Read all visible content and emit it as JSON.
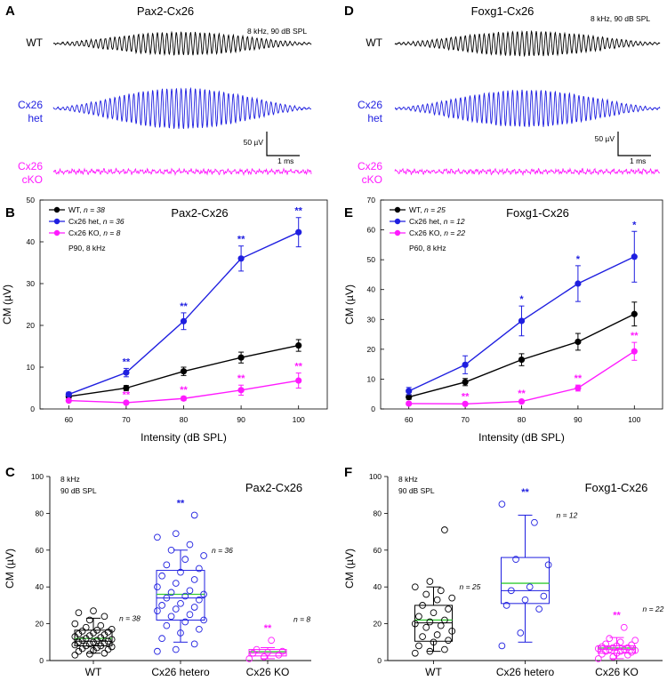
{
  "colors": {
    "wt": "#000000",
    "het": "#1f1fe0",
    "ko": "#ff1aff",
    "green": "#33cc33"
  },
  "panels": {
    "A": {
      "letter": "A",
      "title": "Pax2-Cx26",
      "stim": "8 kHz, 90 dB SPL",
      "labels": {
        "wt": "WT",
        "het1": "Cx26",
        "het2": "het",
        "ko1": "Cx26",
        "ko2": "cKO"
      },
      "scale_amp": "50 µV",
      "scale_time": "1 ms"
    },
    "D": {
      "letter": "D",
      "title": "Foxg1-Cx26",
      "stim": "8 kHz, 90 dB SPL",
      "labels": {
        "wt": "WT",
        "het1": "Cx26",
        "het2": "het",
        "ko1": "Cx26",
        "ko2": "cKO"
      },
      "scale_amp": "50 µV",
      "scale_time": "1 ms"
    }
  },
  "chart_data": [
    {
      "id": "B",
      "letter": "B",
      "type": "line",
      "title": "Pax2-Cx26",
      "xlabel": "Intensity (dB SPL)",
      "ylabel": "CM (µV)",
      "x": [
        60,
        70,
        80,
        90,
        100
      ],
      "xlim": [
        55,
        105
      ],
      "ylim": [
        0,
        50
      ],
      "xticks": [
        60,
        70,
        80,
        90,
        100
      ],
      "yticks": [
        0,
        10,
        20,
        30,
        40,
        50
      ],
      "condition": "P90, 8 kHz",
      "legend_position": "top-left",
      "series": [
        {
          "key": "wt",
          "label": "WT, ",
          "n": "n = 38",
          "values": [
            3.0,
            5.0,
            9.0,
            12.3,
            15.2
          ],
          "err": [
            0.4,
            0.6,
            1.0,
            1.3,
            1.4
          ]
        },
        {
          "key": "het",
          "label": "Cx26 het, ",
          "n": "n = 36",
          "values": [
            3.5,
            8.7,
            21.0,
            36.0,
            42.3
          ],
          "err": [
            0.5,
            1.0,
            2.0,
            3.0,
            3.5
          ]
        },
        {
          "key": "ko",
          "label": "Cx26 KO, ",
          "n": "n = 8",
          "values": [
            2.0,
            1.5,
            2.5,
            4.5,
            6.8
          ],
          "err": [
            0.3,
            0.3,
            0.5,
            1.2,
            1.8
          ]
        }
      ],
      "annotations": [
        {
          "x": 70,
          "series": "het",
          "text": "**"
        },
        {
          "x": 80,
          "series": "het",
          "text": "**"
        },
        {
          "x": 90,
          "series": "het",
          "text": "**"
        },
        {
          "x": 100,
          "series": "het",
          "text": "**"
        },
        {
          "x": 70,
          "series": "ko",
          "text": "**"
        },
        {
          "x": 80,
          "series": "ko",
          "text": "**"
        },
        {
          "x": 90,
          "series": "ko",
          "text": "**"
        },
        {
          "x": 100,
          "series": "ko",
          "text": "**"
        }
      ]
    },
    {
      "id": "E",
      "letter": "E",
      "type": "line",
      "title": "Foxg1-Cx26",
      "xlabel": "Intensity (dB SPL)",
      "ylabel": "CM (µV)",
      "x": [
        60,
        70,
        80,
        90,
        100
      ],
      "xlim": [
        55,
        105
      ],
      "ylim": [
        0,
        70
      ],
      "xticks": [
        60,
        70,
        80,
        90,
        100
      ],
      "yticks": [
        0,
        10,
        20,
        30,
        40,
        50,
        60,
        70
      ],
      "condition": "P60, 8 kHz",
      "legend_position": "top-left",
      "series": [
        {
          "key": "wt",
          "label": "WT, ",
          "n": "n = 25",
          "values": [
            4.0,
            9.0,
            16.5,
            22.5,
            31.8
          ],
          "err": [
            0.8,
            1.2,
            2.0,
            2.8,
            4.0
          ]
        },
        {
          "key": "het",
          "label": "Cx26 het, ",
          "n": "n = 12",
          "values": [
            6.0,
            14.8,
            29.5,
            42.0,
            51.0
          ],
          "err": [
            1.2,
            3.0,
            5.0,
            6.0,
            8.5
          ]
        },
        {
          "key": "ko",
          "label": "Cx26 KO, ",
          "n": "n = 22",
          "values": [
            1.8,
            1.7,
            2.5,
            7.0,
            19.3
          ],
          "err": [
            0.3,
            0.3,
            0.5,
            1.0,
            3.0
          ]
        }
      ],
      "annotations": [
        {
          "x": 80,
          "series": "het",
          "text": "*"
        },
        {
          "x": 90,
          "series": "het",
          "text": "*"
        },
        {
          "x": 100,
          "series": "het",
          "text": "*"
        },
        {
          "x": 70,
          "series": "ko",
          "text": "**"
        },
        {
          "x": 80,
          "series": "ko",
          "text": "**"
        },
        {
          "x": 90,
          "series": "ko",
          "text": "**"
        },
        {
          "x": 100,
          "series": "ko",
          "text": "**"
        }
      ]
    },
    {
      "id": "C",
      "letter": "C",
      "type": "box",
      "title": "Pax2-Cx26",
      "ylabel": "CM (µV)",
      "ylim": [
        0,
        100
      ],
      "yticks": [
        0,
        20,
        40,
        60,
        80,
        100
      ],
      "condition1": "8 kHz",
      "condition2": "90 dB SPL",
      "categories": [
        "WT",
        "Cx26 hetero",
        "Cx26 KO"
      ],
      "groups": [
        {
          "key": "wt",
          "n": "n = 38",
          "q1": 8.0,
          "median": 10.5,
          "q3": 16.5,
          "mean": 12.0,
          "whisker_low": 4.0,
          "whisker_high": 23.0,
          "sig": "",
          "points": [
            3,
            3.5,
            4,
            5,
            5.5,
            6,
            6.5,
            7,
            7.5,
            8,
            8,
            8.5,
            9,
            9.5,
            10,
            10,
            10.5,
            11,
            11,
            11.5,
            12,
            12.5,
            13,
            13.5,
            14,
            14.5,
            15,
            15.5,
            16,
            16.5,
            17,
            18,
            19,
            20,
            22,
            24,
            26,
            27
          ]
        },
        {
          "key": "het",
          "n": "n = 36",
          "q1": 22.0,
          "median": 34.0,
          "q3": 49.0,
          "mean": 36.0,
          "whisker_low": 10.0,
          "whisker_high": 60.0,
          "sig": "**",
          "points": [
            5,
            6,
            9,
            12,
            15,
            17,
            19,
            21,
            22,
            24,
            25,
            27,
            28,
            29,
            30,
            31,
            33,
            34,
            35,
            36,
            37,
            38,
            40,
            42,
            44,
            46,
            48,
            50,
            52,
            55,
            57,
            60,
            63,
            67,
            69,
            79
          ]
        },
        {
          "key": "ko",
          "n": "n = 8",
          "q1": 2.5,
          "median": 4.0,
          "q3": 6.0,
          "mean": 4.8,
          "whisker_low": 1.0,
          "whisker_high": 7.0,
          "sig": "**",
          "points": [
            1,
            2,
            3,
            4,
            4.5,
            5,
            6,
            11
          ]
        }
      ]
    },
    {
      "id": "F",
      "letter": "F",
      "type": "box",
      "title": "Foxg1-Cx26",
      "ylabel": "CM (µV)",
      "ylim": [
        0,
        100
      ],
      "yticks": [
        0,
        20,
        40,
        60,
        80,
        100
      ],
      "condition1": "8 kHz",
      "condition2": "90 dB SPL",
      "categories": [
        "WT",
        "Cx26 hetero",
        "Cx26 KO"
      ],
      "groups": [
        {
          "key": "wt",
          "n": "n = 25",
          "q1": 10.5,
          "median": 20.5,
          "q3": 30.0,
          "mean": 22.0,
          "whisker_low": 5.0,
          "whisker_high": 40.0,
          "sig": "",
          "points": [
            4,
            5,
            6,
            8,
            10,
            11,
            13,
            14,
            16,
            18,
            19,
            20,
            21,
            22,
            24,
            26,
            28,
            30,
            33,
            34,
            36,
            38,
            40,
            43,
            71
          ]
        },
        {
          "key": "het",
          "n": "n = 12",
          "q1": 31.0,
          "median": 38.0,
          "q3": 56.0,
          "mean": 42.0,
          "whisker_low": 10.0,
          "whisker_high": 79.0,
          "sig": "**",
          "points": [
            8,
            15,
            28,
            30,
            33,
            35,
            38,
            40,
            52,
            55,
            75,
            85
          ]
        },
        {
          "key": "ko",
          "n": "n = 22",
          "q1": 4.0,
          "median": 6.0,
          "q3": 8.0,
          "mean": 6.8,
          "whisker_low": 1.0,
          "whisker_high": 12.5,
          "sig": "**",
          "points": [
            1,
            2,
            3,
            3.5,
            4,
            4.5,
            5,
            5,
            5.5,
            6,
            6,
            6.5,
            7,
            7,
            7.5,
            8,
            8.5,
            9,
            10,
            11,
            12,
            18
          ]
        }
      ]
    }
  ]
}
